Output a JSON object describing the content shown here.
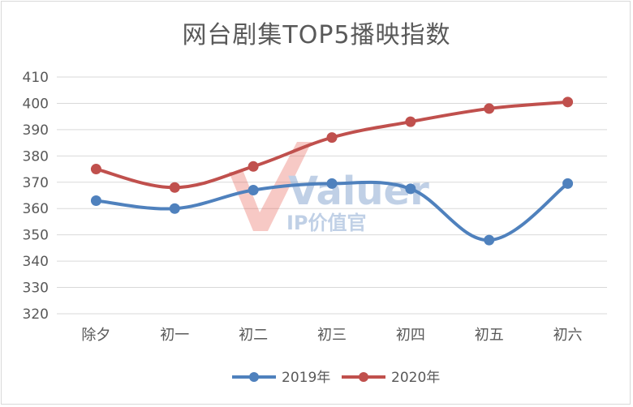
{
  "chart_data": {
    "type": "line",
    "title": "网台剧集TOP5播映指数",
    "categories": [
      "除夕",
      "初一",
      "初二",
      "初三",
      "初四",
      "初五",
      "初六"
    ],
    "series": [
      {
        "name": "2019年",
        "color": "#4f81bd",
        "values": [
          363,
          360,
          367,
          369.5,
          367.5,
          348,
          369.5
        ]
      },
      {
        "name": "2020年",
        "color": "#c0504d",
        "values": [
          375,
          368,
          376,
          387,
          393,
          398,
          400.5
        ]
      }
    ],
    "ylim": [
      320,
      410
    ],
    "yticks": [
      320,
      330,
      340,
      350,
      360,
      370,
      380,
      390,
      400,
      410
    ],
    "grid": true,
    "legend": "bottom",
    "marker": "circle"
  },
  "watermark": {
    "logo_text": "Valuer",
    "sub_text": "IP价值官"
  }
}
